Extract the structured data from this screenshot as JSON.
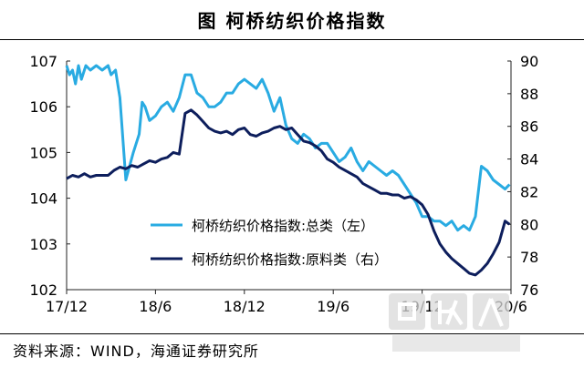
{
  "title": "图  柯桥纺织价格指数",
  "source": "资料来源：WIND，海通证券研究所",
  "watermark": {
    "brand": "回收人",
    "sub": "HUISHOUREN",
    "handle": "gchao8848"
  },
  "colors": {
    "total": "#29ABE2",
    "raw": "#0D1E5C",
    "axis": "#222222"
  },
  "chart_data": {
    "type": "line",
    "title": "柯桥纺织价格指数",
    "x_ticks": [
      "17/12",
      "18/6",
      "18/12",
      "19/6",
      "19/12",
      "20/6"
    ],
    "x_range": [
      0,
      30
    ],
    "y_left": {
      "min": 102,
      "max": 107,
      "ticks": [
        102,
        103,
        104,
        105,
        106,
        107
      ]
    },
    "y_right": {
      "min": 76,
      "max": 90,
      "ticks": [
        76,
        78,
        80,
        82,
        84,
        86,
        88,
        90
      ]
    },
    "series": [
      {
        "name": "柯桥纺织价格指数:总类（左）",
        "axis": "left",
        "x": [
          0,
          0.2,
          0.4,
          0.6,
          0.8,
          1.0,
          1.3,
          1.6,
          2.0,
          2.4,
          2.8,
          3.0,
          3.3,
          3.6,
          4.0,
          4.5,
          4.9,
          5.1,
          5.3,
          5.6,
          6.0,
          6.4,
          6.8,
          7.2,
          7.6,
          8.0,
          8.4,
          8.8,
          9.2,
          9.6,
          10.0,
          10.4,
          10.8,
          11.2,
          11.6,
          12.0,
          12.4,
          12.8,
          13.2,
          13.6,
          14.0,
          14.4,
          14.8,
          15.2,
          15.6,
          16.0,
          16.4,
          16.8,
          17.2,
          17.6,
          18.0,
          18.4,
          18.8,
          19.2,
          19.6,
          20.0,
          20.4,
          20.8,
          21.2,
          21.6,
          22.0,
          22.4,
          22.8,
          23.2,
          23.6,
          24.0,
          24.4,
          24.8,
          25.2,
          25.6,
          26.0,
          26.4,
          26.8,
          27.2,
          27.6,
          28.0,
          28.4,
          28.8,
          29.2,
          29.6,
          29.9
        ],
        "y": [
          106.9,
          106.7,
          106.8,
          106.5,
          106.9,
          106.6,
          106.9,
          106.8,
          106.9,
          106.8,
          106.9,
          106.7,
          106.8,
          106.2,
          104.4,
          105.0,
          105.4,
          106.1,
          106.0,
          105.7,
          105.8,
          106.0,
          106.1,
          105.9,
          106.2,
          106.7,
          106.7,
          106.3,
          106.2,
          106.0,
          106.0,
          106.1,
          106.3,
          106.3,
          106.5,
          106.6,
          106.5,
          106.4,
          106.6,
          106.3,
          105.9,
          106.2,
          105.6,
          105.3,
          105.2,
          105.4,
          105.3,
          105.1,
          105.2,
          105.2,
          105.0,
          104.8,
          104.9,
          105.1,
          104.8,
          104.6,
          104.8,
          104.7,
          104.6,
          104.5,
          104.6,
          104.5,
          104.3,
          104.1,
          103.9,
          103.6,
          103.6,
          103.5,
          103.5,
          103.4,
          103.5,
          103.3,
          103.4,
          103.3,
          103.6,
          104.7,
          104.6,
          104.4,
          104.3,
          104.2,
          104.3
        ]
      },
      {
        "name": "柯桥纺织价格指数:原料类（右）",
        "axis": "right",
        "x": [
          0,
          0.4,
          0.8,
          1.2,
          1.6,
          2.0,
          2.4,
          2.8,
          3.2,
          3.6,
          4.0,
          4.4,
          4.8,
          5.2,
          5.6,
          6.0,
          6.4,
          6.8,
          7.2,
          7.6,
          8.0,
          8.4,
          8.8,
          9.2,
          9.6,
          10.0,
          10.4,
          10.8,
          11.2,
          11.6,
          12.0,
          12.4,
          12.8,
          13.2,
          13.6,
          14.0,
          14.4,
          14.8,
          15.2,
          15.6,
          16.0,
          16.4,
          16.8,
          17.2,
          17.6,
          18.0,
          18.4,
          18.8,
          19.2,
          19.6,
          20.0,
          20.4,
          20.8,
          21.2,
          21.6,
          22.0,
          22.4,
          22.8,
          23.2,
          23.6,
          24.0,
          24.4,
          24.8,
          25.2,
          25.6,
          26.0,
          26.4,
          26.8,
          27.2,
          27.6,
          28.0,
          28.4,
          28.8,
          29.2,
          29.6,
          29.9
        ],
        "y": [
          82.8,
          83.0,
          82.9,
          83.1,
          82.9,
          83.0,
          83.0,
          83.0,
          83.3,
          83.5,
          83.4,
          83.6,
          83.5,
          83.7,
          83.9,
          83.8,
          84.0,
          84.1,
          84.4,
          84.3,
          86.8,
          87.0,
          86.7,
          86.3,
          85.9,
          85.7,
          85.6,
          85.7,
          85.5,
          85.8,
          85.9,
          85.5,
          85.4,
          85.6,
          85.7,
          85.9,
          86.0,
          85.8,
          85.9,
          85.5,
          85.1,
          85.0,
          84.8,
          84.5,
          84.0,
          83.8,
          83.5,
          83.3,
          83.1,
          82.9,
          82.5,
          82.3,
          82.1,
          81.9,
          81.9,
          81.8,
          81.8,
          81.6,
          81.7,
          81.5,
          81.2,
          80.6,
          79.6,
          78.8,
          78.3,
          77.9,
          77.6,
          77.3,
          77.0,
          76.9,
          77.2,
          77.6,
          78.2,
          78.9,
          80.2,
          80.0
        ]
      }
    ],
    "legend": {
      "position": "bottom-center"
    }
  }
}
